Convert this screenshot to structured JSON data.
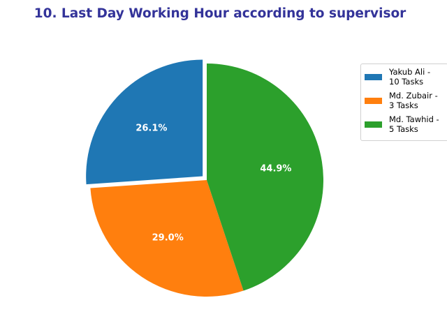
{
  "chart_data": {
    "type": "pie",
    "title": "10. Last Day Working Hour according to supervisor",
    "categories": [
      "Yakub Ali -\n10 Tasks",
      "Md. Zubair -\n3 Tasks",
      "Md. Tawhid -\n5 Tasks"
    ],
    "values": [
      26.1,
      29.0,
      44.9
    ],
    "value_labels": [
      "26.1%",
      "29.0%",
      "44.9%"
    ],
    "colors": [
      "#1f77b4",
      "#ff7f0e",
      "#2ca02c"
    ],
    "exploded": [
      true,
      false,
      false
    ],
    "start_angle_deg": 90,
    "direction": "counterclockwise",
    "legend_position": "upper-right"
  }
}
